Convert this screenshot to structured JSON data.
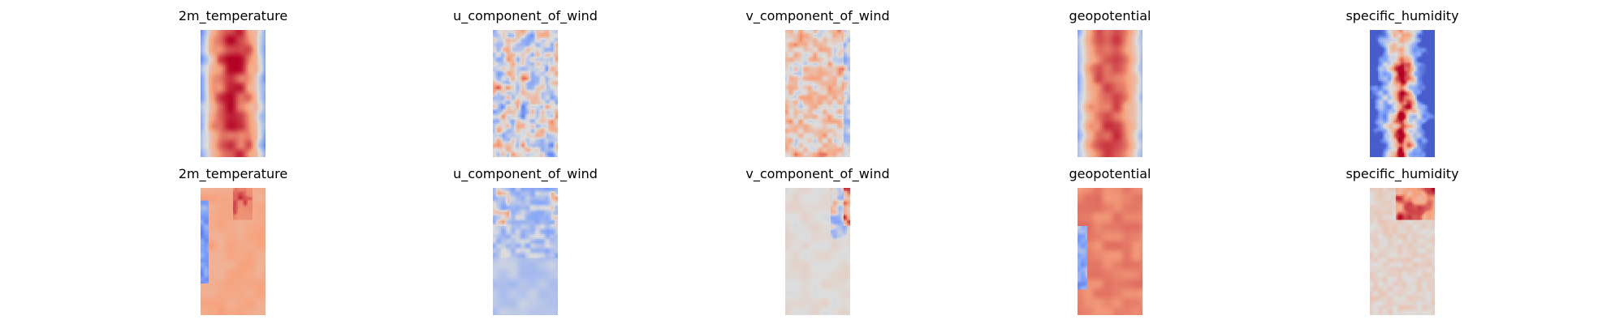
{
  "chart_data": {
    "type": "heatmap",
    "colormap": "coolwarm",
    "axes_visible": false,
    "grid": false,
    "legend": "none",
    "rows": [
      {
        "panels": [
          {
            "title": "2m_temperature",
            "pattern": "temp"
          },
          {
            "title": "u_component_of_wind",
            "pattern": "uwind"
          },
          {
            "title": "v_component_of_wind",
            "pattern": "vwind"
          },
          {
            "title": "geopotential",
            "pattern": "geo"
          },
          {
            "title": "specific_humidity",
            "pattern": "hum"
          }
        ]
      },
      {
        "panels": [
          {
            "title": "2m_temperature",
            "pattern": "temp_diff"
          },
          {
            "title": "u_component_of_wind",
            "pattern": "uwind_diff"
          },
          {
            "title": "v_component_of_wind",
            "pattern": "vwind_diff"
          },
          {
            "title": "geopotential",
            "pattern": "geo_diff"
          },
          {
            "title": "specific_humidity",
            "pattern": "hum_diff"
          }
        ]
      }
    ]
  }
}
